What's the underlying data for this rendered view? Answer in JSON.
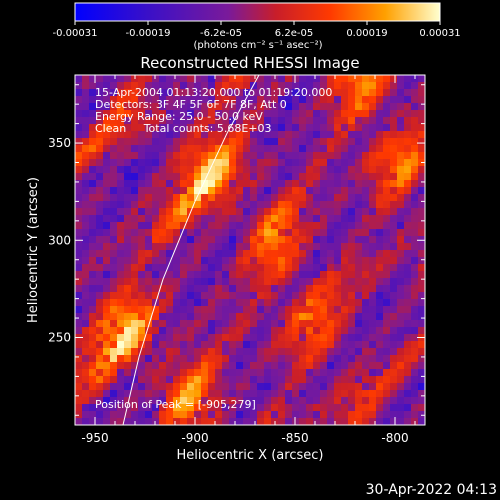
{
  "colorbar": {
    "ticks": [
      "-0.00031",
      "-0.00019",
      "-6.2e-05",
      "6.2e-05",
      "0.00019",
      "0.00031"
    ],
    "unit_label": "(photons cm⁻² s⁻¹ asec⁻²)"
  },
  "chart_data": {
    "type": "heatmap",
    "title": "Reconstructed RHESSI Image",
    "xlabel": "Heliocentric X (arcsec)",
    "ylabel": "Heliocentric Y (arcsec)",
    "xlim": [
      -960,
      -785
    ],
    "ylim": [
      205,
      385
    ],
    "x_ticks": [
      -950,
      -900,
      -850,
      -800
    ],
    "x_tick_labels": [
      "-950",
      "-900",
      "-850",
      "-800"
    ],
    "y_ticks": [
      250,
      300,
      350
    ],
    "y_tick_labels": [
      "250",
      "300",
      "350"
    ],
    "color_range": [
      -0.00031,
      0.00031
    ],
    "colormap": "blue-purple-red-orange-yellow-white",
    "annotations": [
      "15-Apr-2004 01:13:20.000 to 01:19:20.000",
      "Detectors: 3F 4F 5F 6F 7F 8F, Att 0",
      "Energy Range: 25.0 - 50.0 keV",
      "Clean     Total counts: 5.68E+03"
    ],
    "peak_label": "Position of Peak = [-905,279]",
    "peak": [
      -905,
      279
    ],
    "limb_curve": [
      [
        -936,
        205
      ],
      [
        -928,
        240
      ],
      [
        -916,
        280
      ],
      [
        -900,
        320
      ],
      [
        -884,
        355
      ],
      [
        -868,
        385
      ]
    ]
  },
  "footer": {
    "date": "30-Apr-2022 04:13"
  }
}
